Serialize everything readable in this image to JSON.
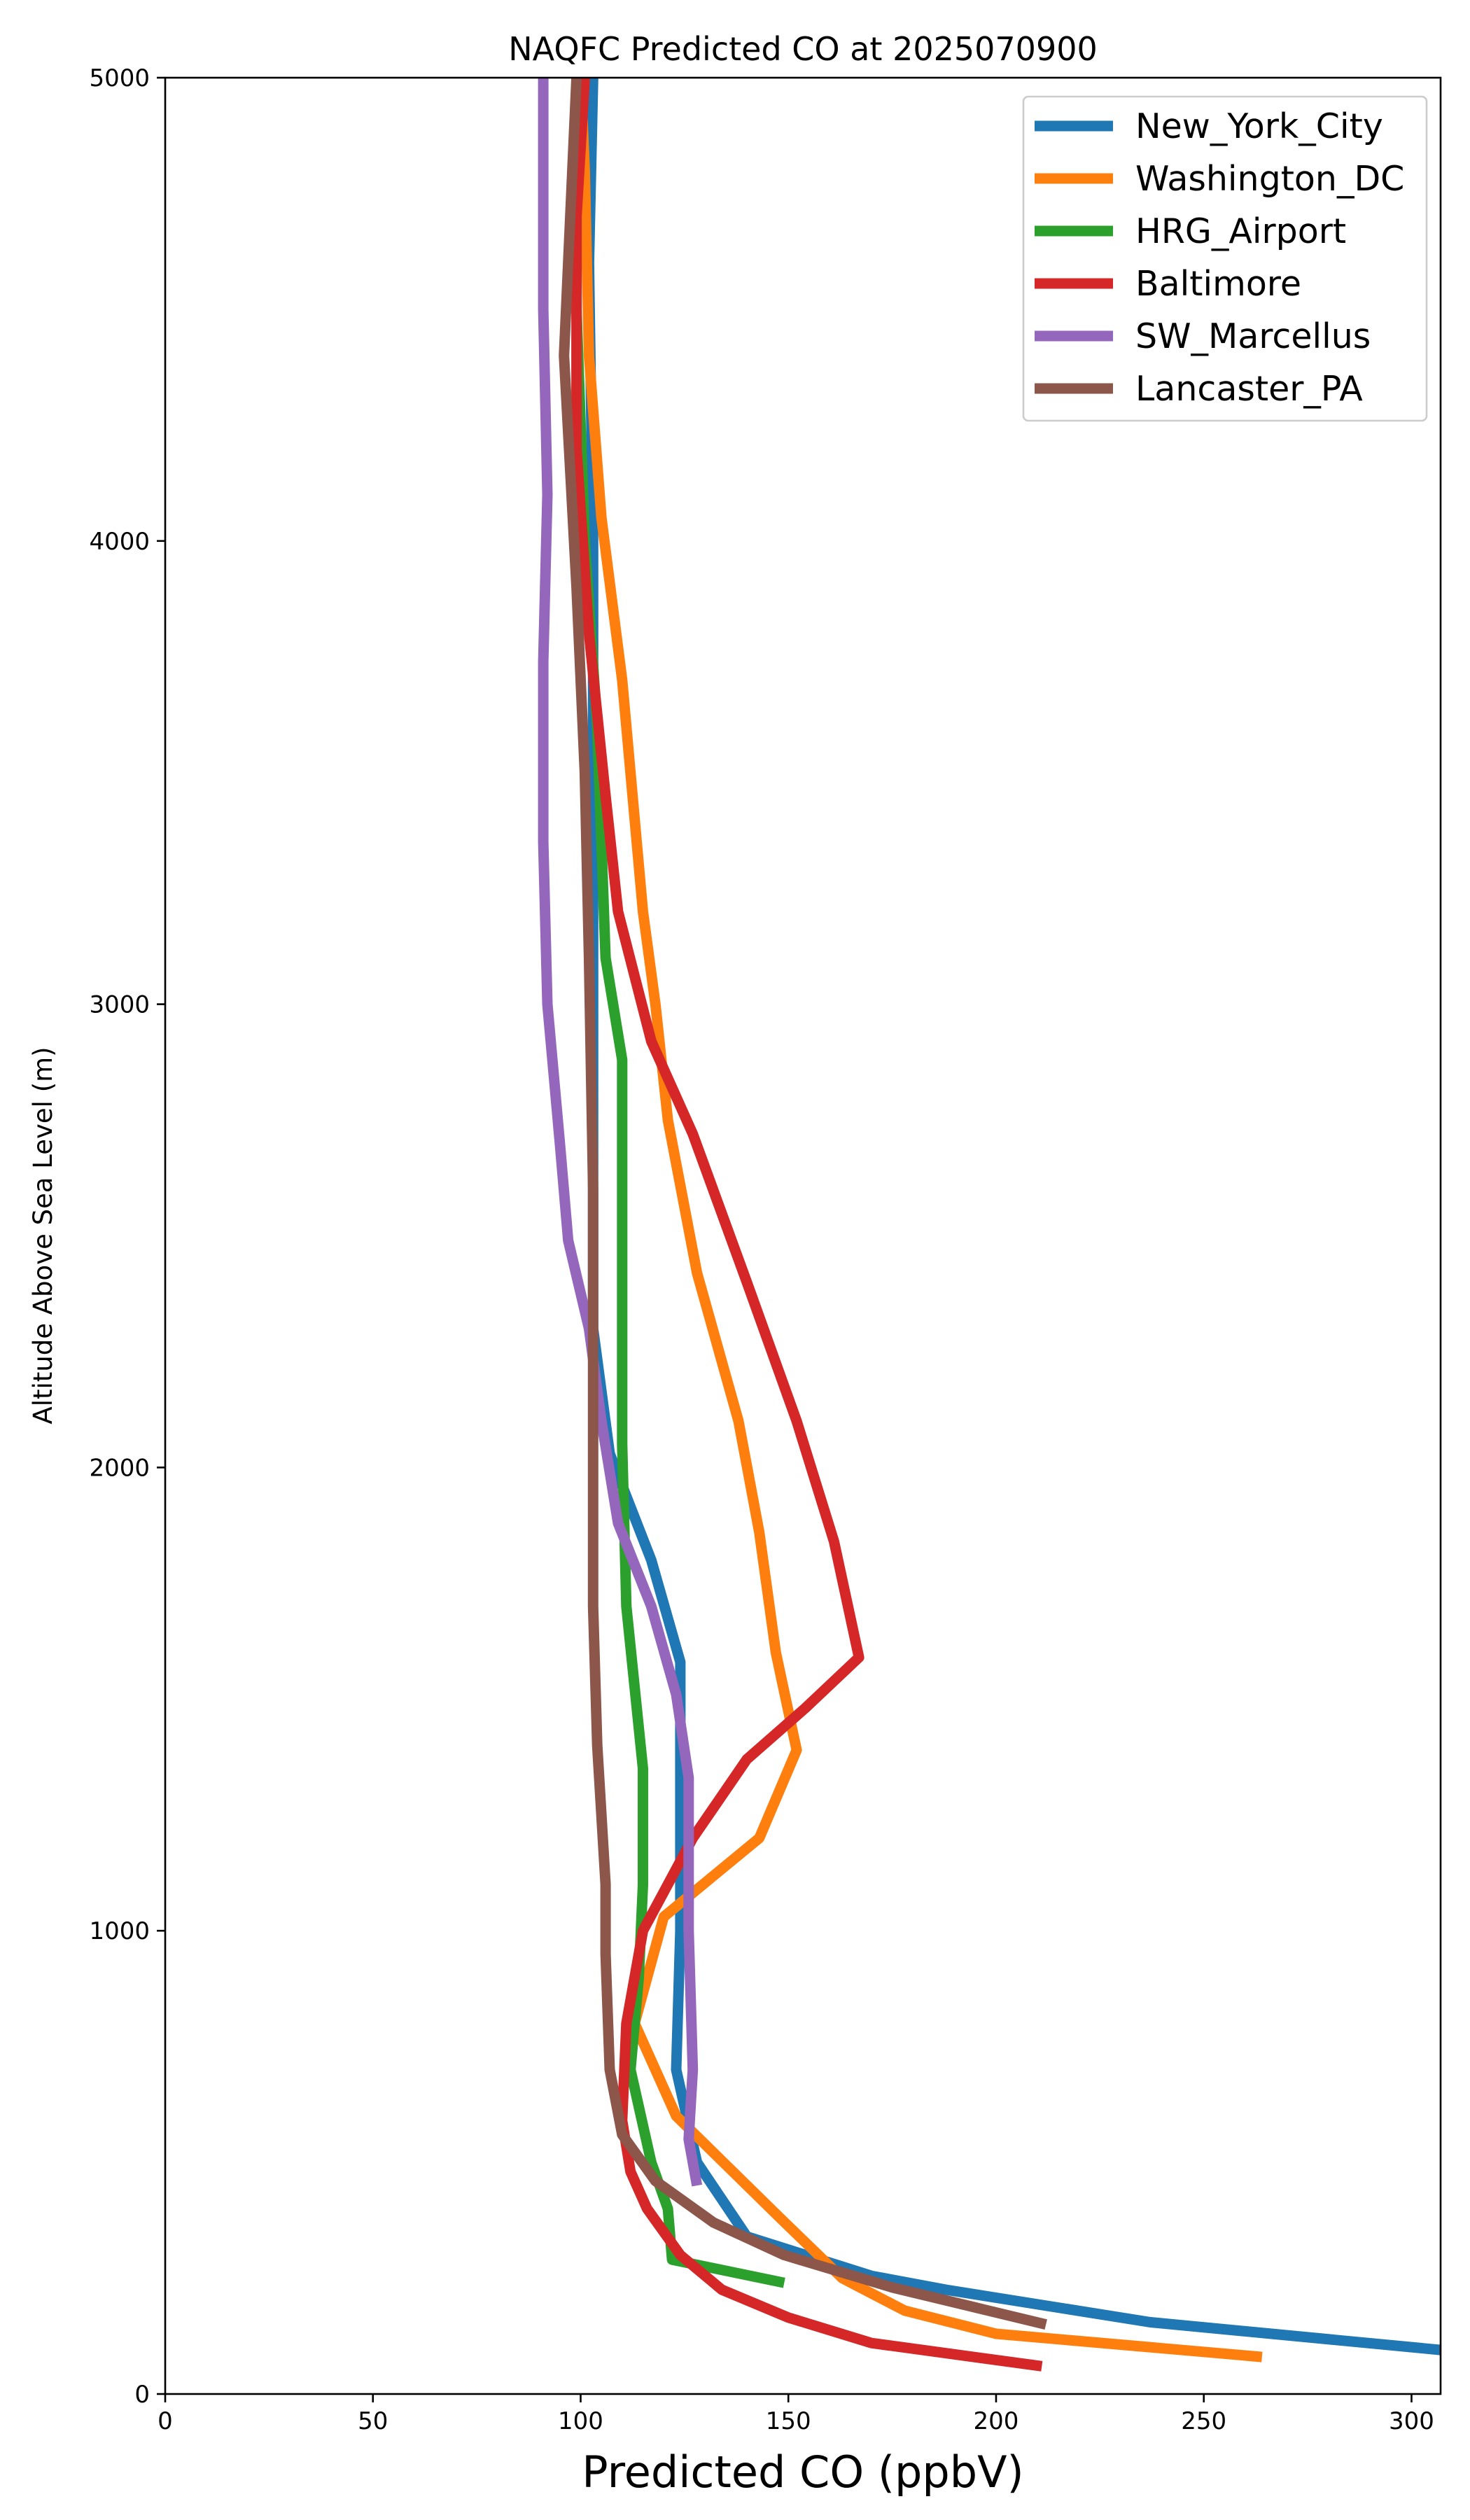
{
  "chart_data": {
    "type": "line",
    "title": "NAQFC Predicted CO at 2025070900",
    "xlabel": "Predicted CO (ppbV)",
    "ylabel": "Altitude Above Sea Level (m)",
    "xlim": [
      0,
      307
    ],
    "ylim": [
      0,
      5000
    ],
    "xticks": [
      "0",
      "50",
      "100",
      "150",
      "200",
      "250",
      "300"
    ],
    "yticks": [
      "0",
      "1000",
      "2000",
      "3000",
      "4000",
      "5000"
    ],
    "legend_position": "top-right",
    "grid": false,
    "series": [
      {
        "name": "New_York_City",
        "color": "#1f77b4",
        "points": [
          [
            307,
            95
          ],
          [
            237,
            155
          ],
          [
            188,
            225
          ],
          [
            170,
            255
          ],
          [
            140,
            340
          ],
          [
            128,
            500
          ],
          [
            123,
            700
          ],
          [
            124,
            1000
          ],
          [
            124,
            1300
          ],
          [
            124,
            1580
          ],
          [
            117,
            1800
          ],
          [
            107,
            2030
          ],
          [
            103,
            2300
          ],
          [
            103,
            3000
          ],
          [
            103,
            4000
          ],
          [
            102,
            4600
          ],
          [
            103,
            5000
          ]
        ]
      },
      {
        "name": "Washington_DC",
        "color": "#ff7f0e",
        "points": [
          [
            264,
            80
          ],
          [
            200,
            130
          ],
          [
            178,
            180
          ],
          [
            163,
            250
          ],
          [
            148,
            380
          ],
          [
            123,
            600
          ],
          [
            113,
            800
          ],
          [
            120,
            1030
          ],
          [
            143,
            1200
          ],
          [
            152,
            1390
          ],
          [
            147,
            1600
          ],
          [
            143,
            1860
          ],
          [
            138,
            2100
          ],
          [
            128,
            2420
          ],
          [
            121,
            2750
          ],
          [
            118,
            3000
          ],
          [
            115,
            3200
          ],
          [
            110,
            3700
          ],
          [
            105,
            4050
          ],
          [
            102,
            4400
          ],
          [
            101,
            4800
          ],
          [
            100,
            5000
          ]
        ]
      },
      {
        "name": "HRG_Airport",
        "color": "#2ca02c",
        "points": [
          [
            149,
            240
          ],
          [
            122,
            290
          ],
          [
            121,
            400
          ],
          [
            117,
            500
          ],
          [
            112,
            700
          ],
          [
            114,
            900
          ],
          [
            115,
            1100
          ],
          [
            115,
            1350
          ],
          [
            111,
            1700
          ],
          [
            110,
            2050
          ],
          [
            110,
            2500
          ],
          [
            110,
            2880
          ],
          [
            106,
            3100
          ],
          [
            104,
            3600
          ],
          [
            101,
            4000
          ],
          [
            99,
            4500
          ],
          [
            99,
            5000
          ]
        ]
      },
      {
        "name": "Baltimore",
        "color": "#d62728",
        "points": [
          [
            211,
            60
          ],
          [
            170,
            110
          ],
          [
            150,
            165
          ],
          [
            134,
            225
          ],
          [
            124,
            300
          ],
          [
            116,
            400
          ],
          [
            112,
            480
          ],
          [
            110,
            590
          ],
          [
            111,
            800
          ],
          [
            115,
            1000
          ],
          [
            127,
            1200
          ],
          [
            140,
            1370
          ],
          [
            154,
            1480
          ],
          [
            167,
            1590
          ],
          [
            161,
            1840
          ],
          [
            152,
            2100
          ],
          [
            140,
            2400
          ],
          [
            127,
            2720
          ],
          [
            117,
            2920
          ],
          [
            109,
            3200
          ],
          [
            106,
            3450
          ],
          [
            102,
            3800
          ],
          [
            99,
            4200
          ],
          [
            99,
            4700
          ],
          [
            101,
            5000
          ]
        ]
      },
      {
        "name": "SW_Marcellus",
        "color": "#9467bd",
        "points": [
          [
            128,
            450
          ],
          [
            126,
            550
          ],
          [
            127,
            700
          ],
          [
            126,
            1000
          ],
          [
            126,
            1330
          ],
          [
            123,
            1510
          ],
          [
            117,
            1700
          ],
          [
            109,
            1880
          ],
          [
            105,
            2100
          ],
          [
            102,
            2300
          ],
          [
            97,
            2490
          ],
          [
            95,
            2700
          ],
          [
            92,
            3000
          ],
          [
            91,
            3350
          ],
          [
            91,
            3740
          ],
          [
            92,
            4100
          ],
          [
            91,
            4500
          ],
          [
            91,
            5000
          ]
        ]
      },
      {
        "name": "Lancaster_PA",
        "color": "#8c564b",
        "points": [
          [
            212,
            150
          ],
          [
            175,
            230
          ],
          [
            149,
            300
          ],
          [
            132,
            370
          ],
          [
            118,
            460
          ],
          [
            110,
            560
          ],
          [
            107,
            700
          ],
          [
            106,
            950
          ],
          [
            106,
            1100
          ],
          [
            104,
            1400
          ],
          [
            103,
            1700
          ],
          [
            103,
            2100
          ],
          [
            103,
            2600
          ],
          [
            102,
            3100
          ],
          [
            101,
            3500
          ],
          [
            99,
            3900
          ],
          [
            96,
            4400
          ],
          [
            98,
            4800
          ],
          [
            99,
            5000
          ]
        ]
      }
    ]
  }
}
